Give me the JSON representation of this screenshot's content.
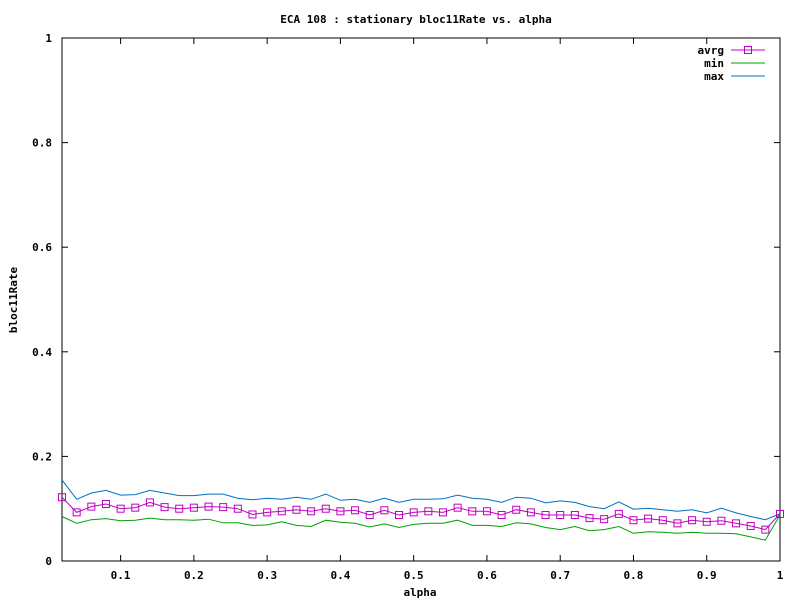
{
  "chart_data": {
    "type": "line",
    "title": "ECA 108 : stationary bloc11Rate vs. alpha",
    "xlabel": "alpha",
    "ylabel": "bloc11Rate",
    "xlim": [
      0.02,
      1
    ],
    "ylim": [
      0,
      1
    ],
    "xticks": [
      0.1,
      0.2,
      0.3,
      0.4,
      0.5,
      0.6,
      0.7,
      0.8,
      0.9,
      1
    ],
    "xtick_labels": [
      "0.1",
      "0.2",
      "0.3",
      "0.4",
      "0.5",
      "0.6",
      "0.7",
      "0.8",
      "0.9",
      "1"
    ],
    "yticks": [
      0,
      0.2,
      0.4,
      0.6,
      0.8,
      1
    ],
    "ytick_labels": [
      "0",
      "0.2",
      "0.4",
      "0.6",
      "0.8",
      "1"
    ],
    "grid": false,
    "legend_position": "top-right",
    "x": [
      0.02,
      0.04,
      0.06,
      0.08,
      0.1,
      0.12,
      0.14,
      0.16,
      0.18,
      0.2,
      0.22,
      0.24,
      0.26,
      0.28,
      0.3,
      0.32,
      0.34,
      0.36,
      0.38,
      0.4,
      0.42,
      0.44,
      0.46,
      0.48,
      0.5,
      0.52,
      0.54,
      0.56,
      0.58,
      0.6,
      0.62,
      0.64,
      0.66,
      0.68,
      0.7,
      0.72,
      0.74,
      0.76,
      0.78,
      0.8,
      0.82,
      0.84,
      0.86,
      0.88,
      0.9,
      0.92,
      0.94,
      0.96,
      0.98,
      1.0
    ],
    "series": [
      {
        "name": "avrg",
        "color": "#c000c0",
        "marker": "square",
        "values": [
          0.122,
          0.093,
          0.104,
          0.109,
          0.1,
          0.102,
          0.112,
          0.103,
          0.1,
          0.102,
          0.104,
          0.103,
          0.1,
          0.089,
          0.093,
          0.095,
          0.098,
          0.095,
          0.1,
          0.095,
          0.097,
          0.088,
          0.097,
          0.088,
          0.093,
          0.095,
          0.093,
          0.102,
          0.095,
          0.095,
          0.088,
          0.098,
          0.093,
          0.088,
          0.088,
          0.088,
          0.082,
          0.08,
          0.09,
          0.078,
          0.081,
          0.078,
          0.072,
          0.078,
          0.075,
          0.077,
          0.072,
          0.067,
          0.06,
          0.09
        ]
      },
      {
        "name": "min",
        "color": "#00a000",
        "marker": "none",
        "values": [
          0.085,
          0.072,
          0.079,
          0.081,
          0.077,
          0.078,
          0.082,
          0.079,
          0.079,
          0.078,
          0.08,
          0.073,
          0.073,
          0.068,
          0.069,
          0.075,
          0.068,
          0.066,
          0.078,
          0.074,
          0.072,
          0.065,
          0.071,
          0.064,
          0.07,
          0.072,
          0.072,
          0.078,
          0.068,
          0.068,
          0.066,
          0.073,
          0.071,
          0.064,
          0.06,
          0.066,
          0.058,
          0.06,
          0.066,
          0.053,
          0.056,
          0.055,
          0.053,
          0.055,
          0.053,
          0.053,
          0.052,
          0.046,
          0.04,
          0.088
        ]
      },
      {
        "name": "max",
        "color": "#0070c0",
        "marker": "none",
        "values": [
          0.155,
          0.118,
          0.13,
          0.135,
          0.126,
          0.127,
          0.135,
          0.13,
          0.125,
          0.125,
          0.128,
          0.128,
          0.12,
          0.117,
          0.12,
          0.118,
          0.122,
          0.118,
          0.128,
          0.116,
          0.118,
          0.112,
          0.12,
          0.112,
          0.118,
          0.118,
          0.119,
          0.126,
          0.12,
          0.118,
          0.112,
          0.122,
          0.12,
          0.111,
          0.115,
          0.112,
          0.104,
          0.1,
          0.113,
          0.099,
          0.101,
          0.098,
          0.095,
          0.098,
          0.092,
          0.101,
          0.092,
          0.085,
          0.079,
          0.09
        ]
      }
    ]
  }
}
